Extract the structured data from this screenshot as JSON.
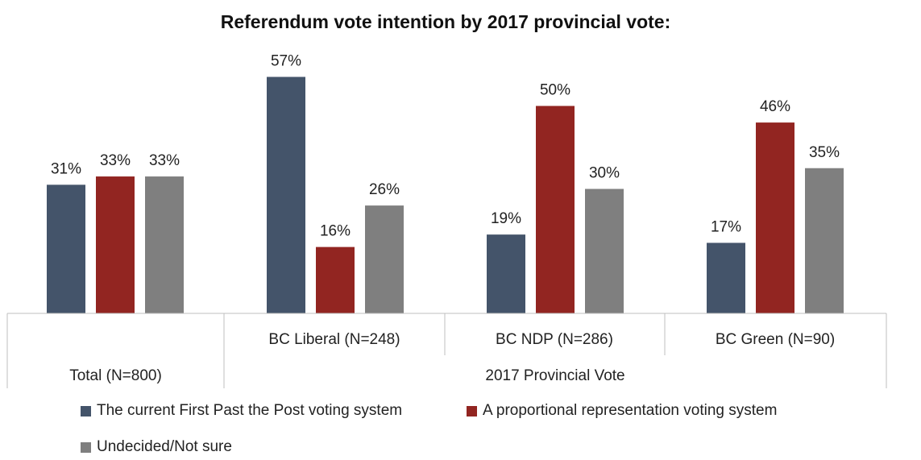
{
  "chart_data": {
    "type": "bar",
    "title": "Referendum vote intention by 2017 provincial vote:",
    "categories": [
      "Total (N=800)",
      "BC Liberal (N=248)",
      "BC NDP (N=286)",
      "BC Green (N=90)"
    ],
    "group_label": "2017 Provincial Vote",
    "series": [
      {
        "name": "The current First Past the Post voting system",
        "color": "#44546a",
        "values": [
          31,
          57,
          19,
          17
        ]
      },
      {
        "name": "A proportional representation voting system",
        "color": "#922521",
        "values": [
          33,
          16,
          50,
          46
        ]
      },
      {
        "name": "Undecided/Not sure",
        "color": "#7f7f7f",
        "values": [
          33,
          26,
          30,
          35
        ]
      }
    ],
    "value_suffix": "%",
    "ylim": [
      0,
      60
    ],
    "grid": false,
    "legend_position": "bottom"
  }
}
